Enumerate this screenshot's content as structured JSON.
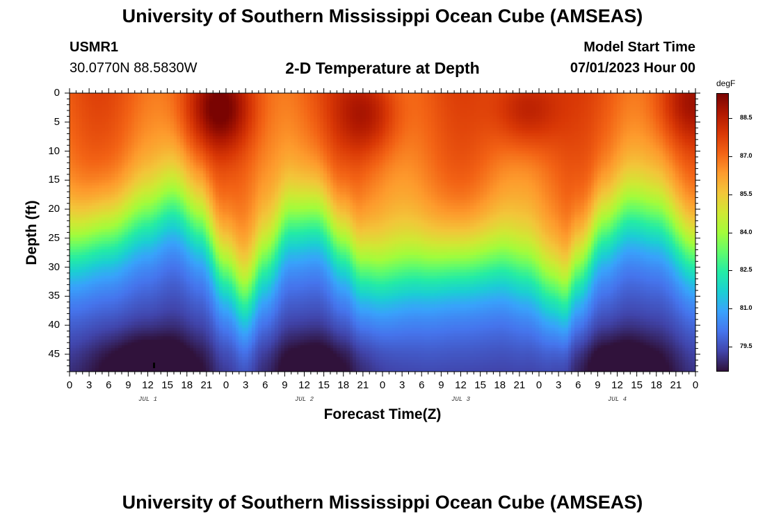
{
  "header": {
    "title": "University of Southern Mississippi Ocean Cube (AMSEAS)",
    "station_id": "USMR1",
    "coords": "30.0770N  88.5830W",
    "subtitle": "2-D Temperature at Depth",
    "start_label": "Model Start Time",
    "start_value": "07/01/2023 Hour 00"
  },
  "footer": {
    "title": "University of Southern Mississippi Ocean Cube (AMSEAS)"
  },
  "chart_data": {
    "type": "heatmap",
    "title": "2-D Temperature at Depth",
    "xlabel": "Forecast Time(Z)",
    "ylabel": "Depth (ft)",
    "x_range_hours": [
      0,
      96
    ],
    "y_range_ft": [
      0,
      48
    ],
    "x_tick_labels": [
      "0",
      "3",
      "6",
      "9",
      "12",
      "15",
      "18",
      "21",
      "0",
      "3",
      "6",
      "9",
      "12",
      "15",
      "18",
      "21",
      "0",
      "3",
      "6",
      "9",
      "12",
      "15",
      "18",
      "21",
      "0",
      "3",
      "6",
      "9",
      "12",
      "15",
      "18",
      "21",
      "0"
    ],
    "y_ticks": [
      0,
      5,
      10,
      15,
      20,
      25,
      30,
      35,
      40,
      45
    ],
    "day_labels": [
      {
        "label": "JUL 1",
        "hour": 12
      },
      {
        "label": "JUL 2",
        "hour": 36
      },
      {
        "label": "JUL 3",
        "hour": 60
      },
      {
        "label": "JUL 4",
        "hour": 84
      }
    ],
    "colorbar": {
      "units": "degF",
      "range": [
        78.5,
        89.5
      ],
      "ticks": [
        "88.5",
        "87.0",
        "85.5",
        "84.0",
        "82.5",
        "81.0",
        "79.5"
      ],
      "stops": [
        "#30123b",
        "#4145ab",
        "#4675ed",
        "#39a2fc",
        "#1bcfd4",
        "#24eca6",
        "#61fc6c",
        "#a4fc3b",
        "#d1e834",
        "#f3c63a",
        "#fe9b2d",
        "#f36315",
        "#d93806",
        "#b11901",
        "#7a0402"
      ]
    },
    "thermocline_depth_ft_by_hour": [
      {
        "hour": 0,
        "depth": 26
      },
      {
        "hour": 6,
        "depth": 24
      },
      {
        "hour": 12,
        "depth": 21
      },
      {
        "hour": 16,
        "depth": 18.5
      },
      {
        "hour": 20,
        "depth": 22
      },
      {
        "hour": 24,
        "depth": 30
      },
      {
        "hour": 27,
        "depth": 34.5
      },
      {
        "hour": 30,
        "depth": 29
      },
      {
        "hour": 34,
        "depth": 22
      },
      {
        "hour": 38,
        "depth": 21
      },
      {
        "hour": 42,
        "depth": 26
      },
      {
        "hour": 45,
        "depth": 30
      },
      {
        "hour": 48,
        "depth": 31
      },
      {
        "hour": 54,
        "depth": 30
      },
      {
        "hour": 60,
        "depth": 29
      },
      {
        "hour": 66,
        "depth": 28.5
      },
      {
        "hour": 70,
        "depth": 30
      },
      {
        "hour": 74,
        "depth": 33
      },
      {
        "hour": 76,
        "depth": 34
      },
      {
        "hour": 78,
        "depth": 30
      },
      {
        "hour": 82,
        "depth": 23
      },
      {
        "hour": 86,
        "depth": 20
      },
      {
        "hour": 90,
        "depth": 21
      },
      {
        "hour": 96,
        "depth": 27
      }
    ],
    "surface_warm_cores": [
      {
        "hour": 23,
        "depth": 3,
        "temp": 89.3
      },
      {
        "hour": 46,
        "depth": 4,
        "temp": 88.8
      },
      {
        "hour": 70,
        "depth": 3,
        "temp": 89.0
      },
      {
        "hour": 95,
        "depth": 2,
        "temp": 88.6
      }
    ],
    "bottom_cold_cores": [
      {
        "hour": 12,
        "depth": 47,
        "temp": 78.9
      },
      {
        "hour": 38,
        "depth": 47,
        "temp": 79.1
      },
      {
        "hour": 84,
        "depth": 47,
        "temp": 79.0
      }
    ]
  }
}
